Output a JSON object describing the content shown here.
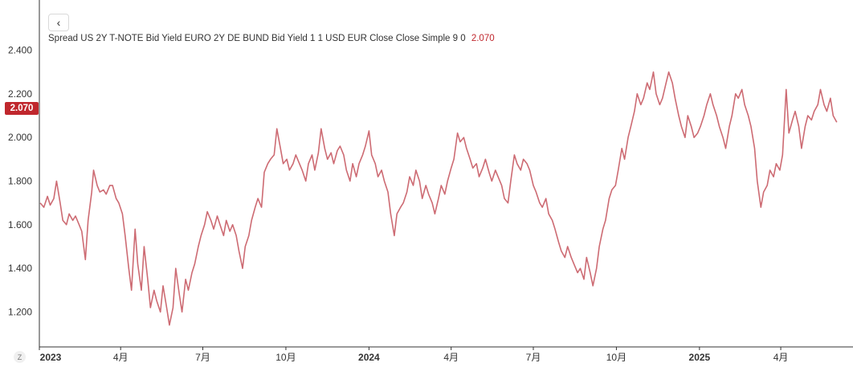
{
  "legend": {
    "text": "Spread US 2Y T-NOTE Bid Yield EURO 2Y DE BUND Bid Yield 1 1 USD EUR Close Close Simple 9 0",
    "value": "2.070"
  },
  "price_tag": "2.070",
  "back_icon": "chevron-left-icon",
  "zoom_label": "Z",
  "colors": {
    "line": "#cd6b73",
    "tag": "#c0272d",
    "axis": "#333333"
  },
  "chart_data": {
    "type": "line",
    "title": "",
    "xlabel": "",
    "ylabel": "",
    "ylim": [
      1.04,
      2.63
    ],
    "xlim": [
      "2023-01-01",
      "2025-06-20"
    ],
    "grid": false,
    "y_ticks": [
      "2.400",
      "2.200",
      "2.000",
      "1.800",
      "1.600",
      "1.400",
      "1.200"
    ],
    "x_ticks": [
      {
        "label": "2023",
        "date": "2023-01-01",
        "major": true
      },
      {
        "label": "4月",
        "date": "2023-04-01",
        "major": false
      },
      {
        "label": "7月",
        "date": "2023-07-01",
        "major": false
      },
      {
        "label": "10月",
        "date": "2023-10-01",
        "major": false
      },
      {
        "label": "2024",
        "date": "2024-01-01",
        "major": true
      },
      {
        "label": "4月",
        "date": "2024-04-01",
        "major": false
      },
      {
        "label": "7月",
        "date": "2024-07-01",
        "major": false
      },
      {
        "label": "10月",
        "date": "2024-10-01",
        "major": false
      },
      {
        "label": "2025",
        "date": "2025-01-01",
        "major": true
      },
      {
        "label": "4月",
        "date": "2025-04-01",
        "major": false
      }
    ],
    "series": [
      {
        "points": [
          [
            "2023-01-02",
            1.7
          ],
          [
            "2023-01-06",
            1.68
          ],
          [
            "2023-01-10",
            1.73
          ],
          [
            "2023-01-13",
            1.69
          ],
          [
            "2023-01-17",
            1.72
          ],
          [
            "2023-01-20",
            1.8
          ],
          [
            "2023-01-24",
            1.7
          ],
          [
            "2023-01-27",
            1.62
          ],
          [
            "2023-01-31",
            1.6
          ],
          [
            "2023-02-03",
            1.65
          ],
          [
            "2023-02-07",
            1.62
          ],
          [
            "2023-02-10",
            1.64
          ],
          [
            "2023-02-14",
            1.6
          ],
          [
            "2023-02-17",
            1.57
          ],
          [
            "2023-02-21",
            1.44
          ],
          [
            "2023-02-24",
            1.62
          ],
          [
            "2023-02-28",
            1.75
          ],
          [
            "2023-03-02",
            1.85
          ],
          [
            "2023-03-06",
            1.78
          ],
          [
            "2023-03-09",
            1.75
          ],
          [
            "2023-03-13",
            1.76
          ],
          [
            "2023-03-16",
            1.74
          ],
          [
            "2023-03-20",
            1.78
          ],
          [
            "2023-03-23",
            1.78
          ],
          [
            "2023-03-27",
            1.72
          ],
          [
            "2023-03-30",
            1.7
          ],
          [
            "2023-04-03",
            1.65
          ],
          [
            "2023-04-06",
            1.55
          ],
          [
            "2023-04-10",
            1.4
          ],
          [
            "2023-04-13",
            1.3
          ],
          [
            "2023-04-17",
            1.58
          ],
          [
            "2023-04-20",
            1.42
          ],
          [
            "2023-04-24",
            1.3
          ],
          [
            "2023-04-27",
            1.5
          ],
          [
            "2023-05-01",
            1.35
          ],
          [
            "2023-05-04",
            1.22
          ],
          [
            "2023-05-08",
            1.3
          ],
          [
            "2023-05-11",
            1.25
          ],
          [
            "2023-05-15",
            1.2
          ],
          [
            "2023-05-18",
            1.32
          ],
          [
            "2023-05-22",
            1.22
          ],
          [
            "2023-05-25",
            1.14
          ],
          [
            "2023-05-29",
            1.22
          ],
          [
            "2023-06-01",
            1.4
          ],
          [
            "2023-06-05",
            1.28
          ],
          [
            "2023-06-08",
            1.2
          ],
          [
            "2023-06-12",
            1.35
          ],
          [
            "2023-06-15",
            1.3
          ],
          [
            "2023-06-19",
            1.38
          ],
          [
            "2023-06-22",
            1.42
          ],
          [
            "2023-06-26",
            1.5
          ],
          [
            "2023-06-29",
            1.55
          ],
          [
            "2023-07-03",
            1.6
          ],
          [
            "2023-07-06",
            1.66
          ],
          [
            "2023-07-10",
            1.62
          ],
          [
            "2023-07-13",
            1.58
          ],
          [
            "2023-07-17",
            1.64
          ],
          [
            "2023-07-20",
            1.6
          ],
          [
            "2023-07-24",
            1.55
          ],
          [
            "2023-07-27",
            1.62
          ],
          [
            "2023-07-31",
            1.57
          ],
          [
            "2023-08-03",
            1.6
          ],
          [
            "2023-08-07",
            1.55
          ],
          [
            "2023-08-10",
            1.48
          ],
          [
            "2023-08-14",
            1.4
          ],
          [
            "2023-08-17",
            1.5
          ],
          [
            "2023-08-21",
            1.55
          ],
          [
            "2023-08-24",
            1.62
          ],
          [
            "2023-08-28",
            1.68
          ],
          [
            "2023-08-31",
            1.72
          ],
          [
            "2023-09-04",
            1.68
          ],
          [
            "2023-09-07",
            1.84
          ],
          [
            "2023-09-11",
            1.88
          ],
          [
            "2023-09-14",
            1.9
          ],
          [
            "2023-09-18",
            1.92
          ],
          [
            "2023-09-21",
            2.04
          ],
          [
            "2023-09-25",
            1.95
          ],
          [
            "2023-09-28",
            1.88
          ],
          [
            "2023-10-02",
            1.9
          ],
          [
            "2023-10-05",
            1.85
          ],
          [
            "2023-10-09",
            1.88
          ],
          [
            "2023-10-12",
            1.92
          ],
          [
            "2023-10-16",
            1.88
          ],
          [
            "2023-10-19",
            1.85
          ],
          [
            "2023-10-23",
            1.8
          ],
          [
            "2023-10-26",
            1.88
          ],
          [
            "2023-10-30",
            1.92
          ],
          [
            "2023-11-02",
            1.85
          ],
          [
            "2023-11-06",
            1.93
          ],
          [
            "2023-11-09",
            2.04
          ],
          [
            "2023-11-13",
            1.95
          ],
          [
            "2023-11-16",
            1.9
          ],
          [
            "2023-11-20",
            1.93
          ],
          [
            "2023-11-23",
            1.88
          ],
          [
            "2023-11-27",
            1.94
          ],
          [
            "2023-11-30",
            1.96
          ],
          [
            "2023-12-04",
            1.92
          ],
          [
            "2023-12-07",
            1.85
          ],
          [
            "2023-12-11",
            1.8
          ],
          [
            "2023-12-14",
            1.88
          ],
          [
            "2023-12-18",
            1.82
          ],
          [
            "2023-12-21",
            1.88
          ],
          [
            "2023-12-25",
            1.92
          ],
          [
            "2023-12-28",
            1.96
          ],
          [
            "2024-01-01",
            2.03
          ],
          [
            "2024-01-04",
            1.92
          ],
          [
            "2024-01-08",
            1.88
          ],
          [
            "2024-01-11",
            1.82
          ],
          [
            "2024-01-15",
            1.85
          ],
          [
            "2024-01-18",
            1.8
          ],
          [
            "2024-01-22",
            1.75
          ],
          [
            "2024-01-25",
            1.65
          ],
          [
            "2024-01-29",
            1.55
          ],
          [
            "2024-02-01",
            1.65
          ],
          [
            "2024-02-05",
            1.68
          ],
          [
            "2024-02-08",
            1.7
          ],
          [
            "2024-02-12",
            1.75
          ],
          [
            "2024-02-15",
            1.82
          ],
          [
            "2024-02-19",
            1.78
          ],
          [
            "2024-02-22",
            1.85
          ],
          [
            "2024-02-26",
            1.8
          ],
          [
            "2024-02-29",
            1.72
          ],
          [
            "2024-03-04",
            1.78
          ],
          [
            "2024-03-07",
            1.74
          ],
          [
            "2024-03-11",
            1.7
          ],
          [
            "2024-03-14",
            1.65
          ],
          [
            "2024-03-18",
            1.72
          ],
          [
            "2024-03-21",
            1.78
          ],
          [
            "2024-03-25",
            1.74
          ],
          [
            "2024-03-28",
            1.8
          ],
          [
            "2024-04-01",
            1.86
          ],
          [
            "2024-04-04",
            1.9
          ],
          [
            "2024-04-08",
            2.02
          ],
          [
            "2024-04-11",
            1.98
          ],
          [
            "2024-04-15",
            2.0
          ],
          [
            "2024-04-18",
            1.95
          ],
          [
            "2024-04-22",
            1.9
          ],
          [
            "2024-04-25",
            1.86
          ],
          [
            "2024-04-29",
            1.88
          ],
          [
            "2024-05-02",
            1.82
          ],
          [
            "2024-05-06",
            1.86
          ],
          [
            "2024-05-09",
            1.9
          ],
          [
            "2024-05-13",
            1.84
          ],
          [
            "2024-05-16",
            1.8
          ],
          [
            "2024-05-20",
            1.85
          ],
          [
            "2024-05-23",
            1.82
          ],
          [
            "2024-05-27",
            1.78
          ],
          [
            "2024-05-30",
            1.72
          ],
          [
            "2024-06-03",
            1.7
          ],
          [
            "2024-06-06",
            1.8
          ],
          [
            "2024-06-10",
            1.92
          ],
          [
            "2024-06-13",
            1.88
          ],
          [
            "2024-06-17",
            1.85
          ],
          [
            "2024-06-20",
            1.9
          ],
          [
            "2024-06-24",
            1.88
          ],
          [
            "2024-06-27",
            1.85
          ],
          [
            "2024-07-01",
            1.78
          ],
          [
            "2024-07-04",
            1.75
          ],
          [
            "2024-07-08",
            1.7
          ],
          [
            "2024-07-11",
            1.68
          ],
          [
            "2024-07-15",
            1.72
          ],
          [
            "2024-07-18",
            1.65
          ],
          [
            "2024-07-22",
            1.62
          ],
          [
            "2024-07-25",
            1.58
          ],
          [
            "2024-07-29",
            1.52
          ],
          [
            "2024-08-01",
            1.48
          ],
          [
            "2024-08-05",
            1.45
          ],
          [
            "2024-08-08",
            1.5
          ],
          [
            "2024-08-12",
            1.45
          ],
          [
            "2024-08-15",
            1.42
          ],
          [
            "2024-08-19",
            1.38
          ],
          [
            "2024-08-22",
            1.4
          ],
          [
            "2024-08-26",
            1.35
          ],
          [
            "2024-08-29",
            1.45
          ],
          [
            "2024-09-02",
            1.38
          ],
          [
            "2024-09-05",
            1.32
          ],
          [
            "2024-09-09",
            1.4
          ],
          [
            "2024-09-12",
            1.5
          ],
          [
            "2024-09-16",
            1.58
          ],
          [
            "2024-09-19",
            1.62
          ],
          [
            "2024-09-23",
            1.72
          ],
          [
            "2024-09-26",
            1.76
          ],
          [
            "2024-09-30",
            1.78
          ],
          [
            "2024-10-03",
            1.85
          ],
          [
            "2024-10-07",
            1.95
          ],
          [
            "2024-10-10",
            1.9
          ],
          [
            "2024-10-14",
            2.0
          ],
          [
            "2024-10-17",
            2.05
          ],
          [
            "2024-10-21",
            2.12
          ],
          [
            "2024-10-24",
            2.2
          ],
          [
            "2024-10-28",
            2.15
          ],
          [
            "2024-10-31",
            2.18
          ],
          [
            "2024-11-04",
            2.25
          ],
          [
            "2024-11-07",
            2.22
          ],
          [
            "2024-11-11",
            2.3
          ],
          [
            "2024-11-14",
            2.2
          ],
          [
            "2024-11-18",
            2.15
          ],
          [
            "2024-11-21",
            2.18
          ],
          [
            "2024-11-25",
            2.25
          ],
          [
            "2024-11-28",
            2.3
          ],
          [
            "2024-12-02",
            2.25
          ],
          [
            "2024-12-05",
            2.18
          ],
          [
            "2024-12-09",
            2.1
          ],
          [
            "2024-12-12",
            2.05
          ],
          [
            "2024-12-16",
            2.0
          ],
          [
            "2024-12-19",
            2.1
          ],
          [
            "2024-12-23",
            2.05
          ],
          [
            "2024-12-26",
            2.0
          ],
          [
            "2024-12-30",
            2.02
          ],
          [
            "2025-01-02",
            2.05
          ],
          [
            "2025-01-06",
            2.1
          ],
          [
            "2025-01-09",
            2.15
          ],
          [
            "2025-01-13",
            2.2
          ],
          [
            "2025-01-16",
            2.15
          ],
          [
            "2025-01-20",
            2.1
          ],
          [
            "2025-01-23",
            2.05
          ],
          [
            "2025-01-27",
            2.0
          ],
          [
            "2025-01-30",
            1.95
          ],
          [
            "2025-02-03",
            2.05
          ],
          [
            "2025-02-06",
            2.1
          ],
          [
            "2025-02-10",
            2.2
          ],
          [
            "2025-02-13",
            2.18
          ],
          [
            "2025-02-17",
            2.22
          ],
          [
            "2025-02-20",
            2.15
          ],
          [
            "2025-02-24",
            2.1
          ],
          [
            "2025-02-27",
            2.05
          ],
          [
            "2025-03-03",
            1.95
          ],
          [
            "2025-03-06",
            1.8
          ],
          [
            "2025-03-10",
            1.68
          ],
          [
            "2025-03-13",
            1.75
          ],
          [
            "2025-03-17",
            1.78
          ],
          [
            "2025-03-20",
            1.85
          ],
          [
            "2025-03-24",
            1.82
          ],
          [
            "2025-03-27",
            1.88
          ],
          [
            "2025-03-31",
            1.85
          ],
          [
            "2025-04-03",
            1.92
          ],
          [
            "2025-04-07",
            2.22
          ],
          [
            "2025-04-10",
            2.02
          ],
          [
            "2025-04-14",
            2.08
          ],
          [
            "2025-04-17",
            2.12
          ],
          [
            "2025-04-21",
            2.05
          ],
          [
            "2025-04-24",
            1.95
          ],
          [
            "2025-04-28",
            2.05
          ],
          [
            "2025-05-01",
            2.1
          ],
          [
            "2025-05-05",
            2.08
          ],
          [
            "2025-05-08",
            2.12
          ],
          [
            "2025-05-12",
            2.15
          ],
          [
            "2025-05-15",
            2.22
          ],
          [
            "2025-05-19",
            2.15
          ],
          [
            "2025-05-22",
            2.12
          ],
          [
            "2025-05-26",
            2.18
          ],
          [
            "2025-05-29",
            2.1
          ],
          [
            "2025-06-02",
            2.07
          ]
        ]
      }
    ]
  }
}
